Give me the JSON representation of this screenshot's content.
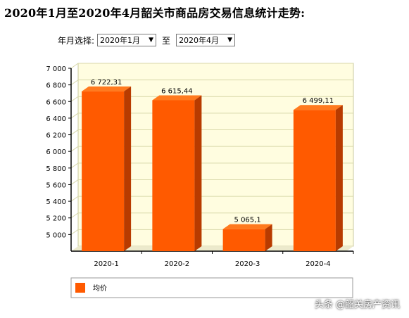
{
  "page": {
    "title": "2020年1月至2020年4月韶关市商品房交易信息统计走势:",
    "filter_label": "年月选择:",
    "filter_start": "2020年1月",
    "filter_separator": "至",
    "filter_end": "2020年4月",
    "watermark": "头条 @韶关房产资讯"
  },
  "colors": {
    "bar_front": "#ff5a00",
    "bar_top": "#ff7a1e",
    "bar_side": "#b83b00",
    "plot_bg": "#fffde0",
    "grid": "#d8d8a8"
  },
  "chart_data": {
    "type": "bar",
    "categories": [
      "2020-1",
      "2020-2",
      "2020-3",
      "2020-4"
    ],
    "values": [
      6722.31,
      6615.44,
      5065.1,
      6499.11
    ],
    "value_labels": [
      "6 722,31",
      "6 615,44",
      "5 065,1",
      "6 499,11"
    ],
    "yticks": [
      5000,
      5200,
      5400,
      5600,
      5800,
      6000,
      6200,
      6400,
      6600,
      6800,
      7000
    ],
    "ytick_labels": [
      "5 000",
      "5 200",
      "5 400",
      "5 600",
      "5 800",
      "6 000",
      "6 200",
      "6 400",
      "6 600",
      "6 800",
      "7 000"
    ],
    "ylim": [
      4800,
      7000
    ],
    "legend": [
      "均价"
    ],
    "legend_position": "bottom",
    "grid": true
  }
}
